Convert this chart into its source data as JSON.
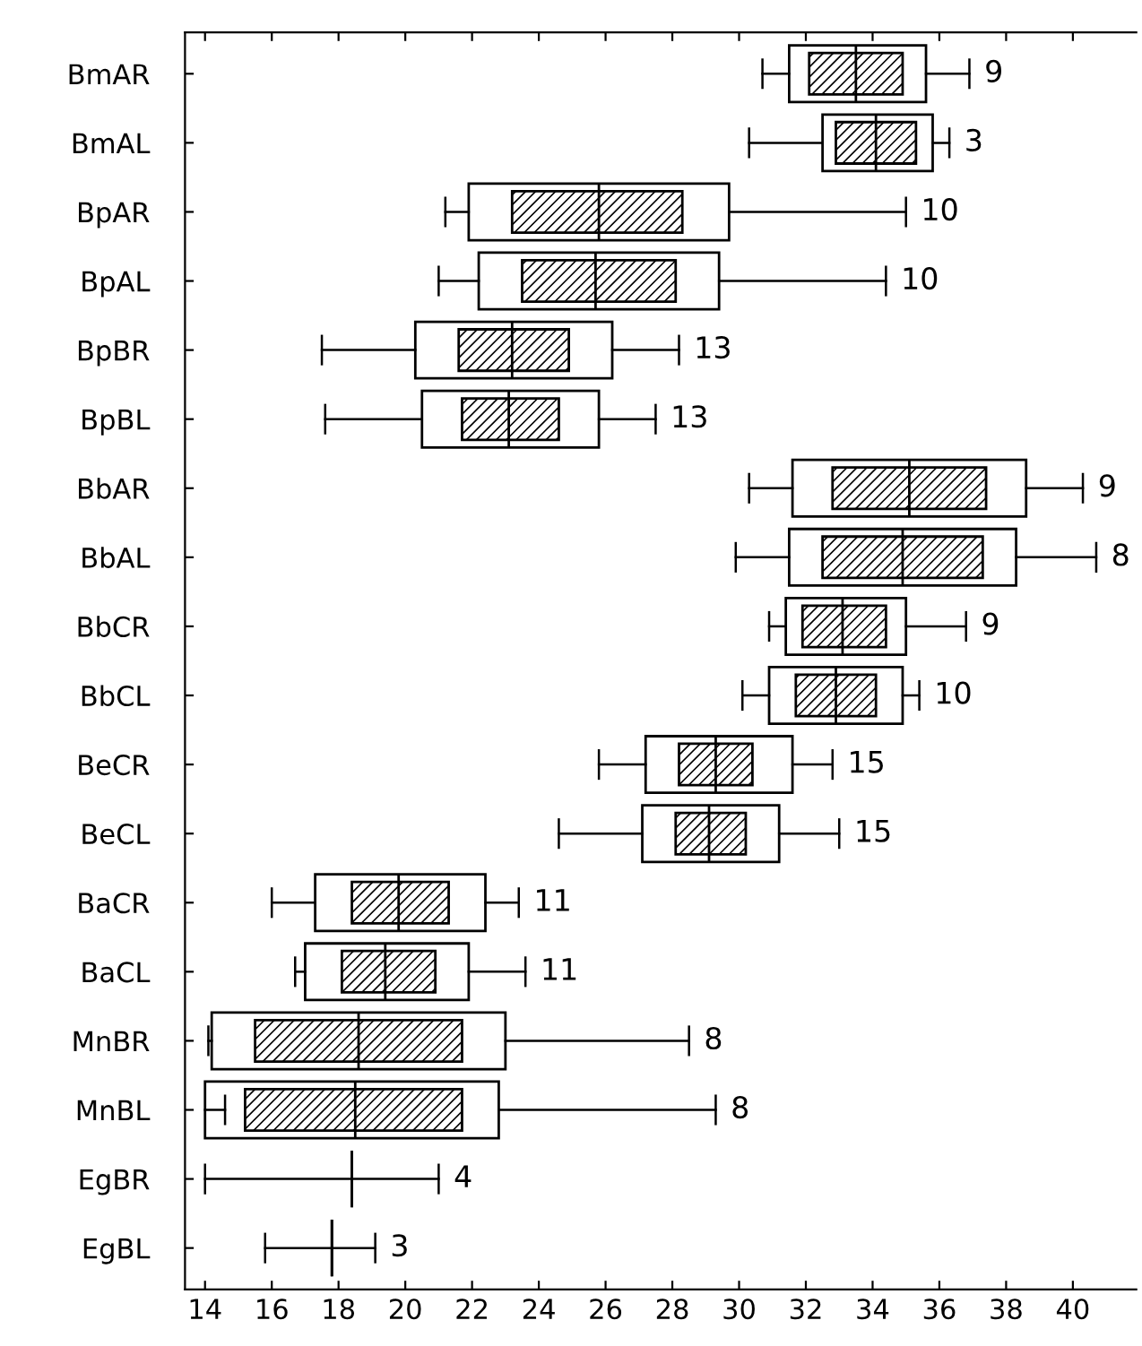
{
  "chart_data": {
    "type": "box",
    "orientation": "horizontal",
    "categories": [
      "BmAR",
      "BmAL",
      "BpAR",
      "BpAL",
      "BpBR",
      "BpBL",
      "BbAR",
      "BbAL",
      "BbCR",
      "BbCL",
      "BeCR",
      "BeCL",
      "BaCR",
      "BaCL",
      "MnBR",
      "MnBL",
      "EgBR",
      "EgBL"
    ],
    "series": [
      {
        "color": "#000000",
        "boxes": [
          {
            "low": 30.7,
            "q1": 31.5,
            "median": 33.5,
            "q3": 35.6,
            "high": 36.9
          },
          {
            "low": 30.3,
            "q1": 32.5,
            "median": 34.1,
            "q3": 35.8,
            "high": 36.3
          },
          {
            "low": 21.2,
            "q1": 21.9,
            "median": 25.8,
            "q3": 29.7,
            "high": 35.0
          },
          {
            "low": 21.0,
            "q1": 22.2,
            "median": 25.7,
            "q3": 29.4,
            "high": 34.4
          },
          {
            "low": 17.5,
            "q1": 20.3,
            "median": 23.2,
            "q3": 26.2,
            "high": 28.2
          },
          {
            "low": 17.6,
            "q1": 20.5,
            "median": 23.1,
            "q3": 25.8,
            "high": 27.5
          },
          {
            "low": 30.3,
            "q1": 31.6,
            "median": 35.1,
            "q3": 38.6,
            "high": 40.3
          },
          {
            "low": 29.9,
            "q1": 31.5,
            "median": 34.9,
            "q3": 38.3,
            "high": 40.7
          },
          {
            "low": 30.9,
            "q1": 31.4,
            "median": 33.1,
            "q3": 35.0,
            "high": 36.8
          },
          {
            "low": 30.1,
            "q1": 30.9,
            "median": 32.9,
            "q3": 34.9,
            "high": 35.4
          },
          {
            "low": 25.8,
            "q1": 27.2,
            "median": 29.3,
            "q3": 31.6,
            "high": 32.8
          },
          {
            "low": 24.6,
            "q1": 27.1,
            "median": 29.1,
            "q3": 31.2,
            "high": 33.0
          },
          {
            "low": 16.0,
            "q1": 17.3,
            "median": 19.8,
            "q3": 22.4,
            "high": 23.4
          },
          {
            "low": 16.7,
            "q1": 17.0,
            "median": 19.4,
            "q3": 21.9,
            "high": 23.6
          },
          {
            "low": 14.1,
            "q1": 14.2,
            "median": 18.6,
            "q3": 23.0,
            "high": 28.5
          },
          {
            "low": 14.6,
            "q1": 14.0,
            "median": 18.5,
            "q3": 22.8,
            "high": 29.3
          },
          {
            "low": 14.0,
            "q1": 18.4,
            "median": 18.4,
            "q3": 18.4,
            "high": 21.0
          },
          {
            "low": 15.8,
            "q1": 17.8,
            "median": 17.8,
            "q3": 17.8,
            "high": 19.1
          }
        ]
      },
      {
        "color": "#000000",
        "boxes": [
          {
            "low": 32.1,
            "q1": 32.1,
            "median": 33.5,
            "q3": 34.9,
            "high": 34.9
          },
          {
            "low": 32.9,
            "q1": 32.9,
            "median": 34.1,
            "q3": 35.3,
            "high": 35.3
          },
          {
            "low": 23.2,
            "q1": 23.2,
            "median": 25.8,
            "q3": 28.3,
            "high": 28.3
          },
          {
            "low": 23.5,
            "q1": 23.5,
            "median": 25.7,
            "q3": 28.1,
            "high": 28.1
          },
          {
            "low": 21.6,
            "q1": 21.6,
            "median": 23.2,
            "q3": 24.9,
            "high": 24.9
          },
          {
            "low": 21.7,
            "q1": 21.7,
            "median": 23.1,
            "q3": 24.6,
            "high": 24.6
          },
          {
            "low": 32.8,
            "q1": 32.8,
            "median": 35.1,
            "q3": 37.4,
            "high": 37.4
          },
          {
            "low": 32.5,
            "q1": 32.5,
            "median": 34.9,
            "q3": 37.3,
            "high": 37.3
          },
          {
            "low": 31.9,
            "q1": 31.9,
            "median": 33.1,
            "q3": 34.4,
            "high": 34.4
          },
          {
            "low": 31.7,
            "q1": 31.7,
            "median": 32.9,
            "q3": 34.1,
            "high": 34.1
          },
          {
            "low": 28.2,
            "q1": 28.2,
            "median": 29.3,
            "q3": 30.4,
            "high": 30.4
          },
          {
            "low": 28.1,
            "q1": 28.1,
            "median": 29.1,
            "q3": 30.2,
            "high": 30.2
          },
          {
            "low": 18.4,
            "q1": 18.4,
            "median": 19.8,
            "q3": 21.3,
            "high": 21.3
          },
          {
            "low": 18.1,
            "q1": 18.1,
            "median": 19.4,
            "q3": 20.9,
            "high": 20.9
          },
          {
            "low": 15.5,
            "q1": 15.5,
            "median": 18.6,
            "q3": 21.7,
            "high": 21.7
          },
          {
            "low": 15.2,
            "q1": 15.2,
            "median": 18.5,
            "q3": 21.7,
            "high": 21.7
          },
          null,
          null
        ]
      }
    ],
    "xlim": [
      13.4,
      41.9
    ],
    "xticks": [
      14,
      16,
      18,
      20,
      22,
      24,
      26,
      28,
      30,
      32,
      34,
      36,
      38,
      40
    ],
    "grid": false,
    "annotations": [
      {
        "text": "9",
        "x": 36.9,
        "y": "BmAR"
      },
      {
        "text": "3",
        "x": 36.3,
        "y": "BmAL"
      },
      {
        "text": "10",
        "x": 35.0,
        "y": "BpAR"
      },
      {
        "text": "10",
        "x": 34.4,
        "y": "BpAL"
      },
      {
        "text": "13",
        "x": 28.2,
        "y": "BpBR"
      },
      {
        "text": "13",
        "x": 27.5,
        "y": "BpBL"
      },
      {
        "text": "9",
        "x": 40.3,
        "y": "BbAR"
      },
      {
        "text": "8",
        "x": 40.7,
        "y": "BbAL"
      },
      {
        "text": "9",
        "x": 36.8,
        "y": "BbCR"
      },
      {
        "text": "10",
        "x": 35.4,
        "y": "BbCL"
      },
      {
        "text": "15",
        "x": 32.8,
        "y": "BeCR"
      },
      {
        "text": "15",
        "x": 33.0,
        "y": "BeCL"
      },
      {
        "text": "11",
        "x": 23.4,
        "y": "BaCR"
      },
      {
        "text": "11",
        "x": 23.6,
        "y": "BaCL"
      },
      {
        "text": "8",
        "x": 28.5,
        "y": "MnBR"
      },
      {
        "text": "8",
        "x": 29.3,
        "y": "MnBL"
      },
      {
        "text": "4",
        "x": 21.0,
        "y": "EgBR"
      },
      {
        "text": "3",
        "x": 19.1,
        "y": "EgBL"
      }
    ]
  }
}
